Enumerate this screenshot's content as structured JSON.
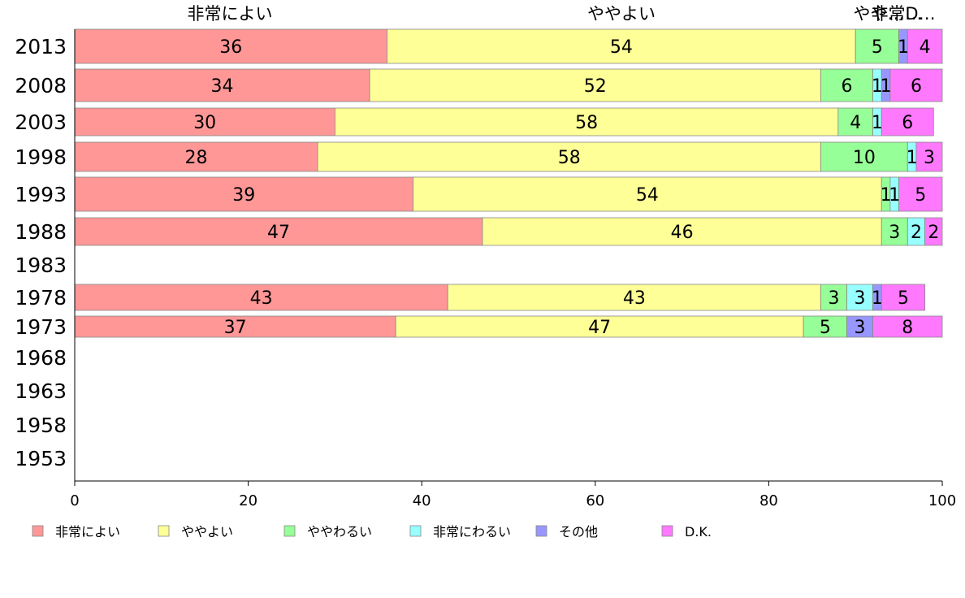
{
  "chart_data": {
    "type": "bar",
    "orientation": "horizontal",
    "stacked": true,
    "categories": [
      "2013",
      "2008",
      "2003",
      "1998",
      "1993",
      "1988",
      "1983",
      "1978",
      "1973",
      "1968",
      "1963",
      "1958",
      "1953"
    ],
    "series": [
      {
        "name": "非常によい",
        "color": "#ff9797",
        "values": [
          36,
          34,
          30,
          28,
          39,
          47,
          null,
          43,
          37,
          null,
          null,
          null,
          null
        ]
      },
      {
        "name": "ややよい",
        "color": "#ffff97",
        "values": [
          54,
          52,
          58,
          58,
          54,
          46,
          null,
          43,
          47,
          null,
          null,
          null,
          null
        ]
      },
      {
        "name": "ややわるい",
        "color": "#97ff97",
        "values": [
          5,
          6,
          4,
          10,
          1,
          3,
          null,
          3,
          5,
          null,
          null,
          null,
          null
        ]
      },
      {
        "name": "非常にわるい",
        "color": "#97ffff",
        "values": [
          0,
          1,
          1,
          1,
          1,
          2,
          null,
          3,
          0,
          null,
          null,
          null,
          null
        ]
      },
      {
        "name": "その他",
        "color": "#9797ff",
        "values": [
          1,
          1,
          0,
          0,
          0,
          0,
          null,
          1,
          3,
          null,
          null,
          null,
          null
        ]
      },
      {
        "name": "D.K.",
        "color": "#ff79ff",
        "values": [
          4,
          6,
          6,
          3,
          5,
          2,
          null,
          5,
          8,
          null,
          null,
          null,
          null
        ]
      }
    ],
    "top_labels": [
      "非常によい",
      "ややよい",
      "やや…",
      "非常…",
      "D…"
    ],
    "xlim": [
      0,
      100
    ],
    "xticks": [
      0,
      20,
      40,
      60,
      80,
      100
    ],
    "grid": false,
    "legend_position": "bottom"
  }
}
